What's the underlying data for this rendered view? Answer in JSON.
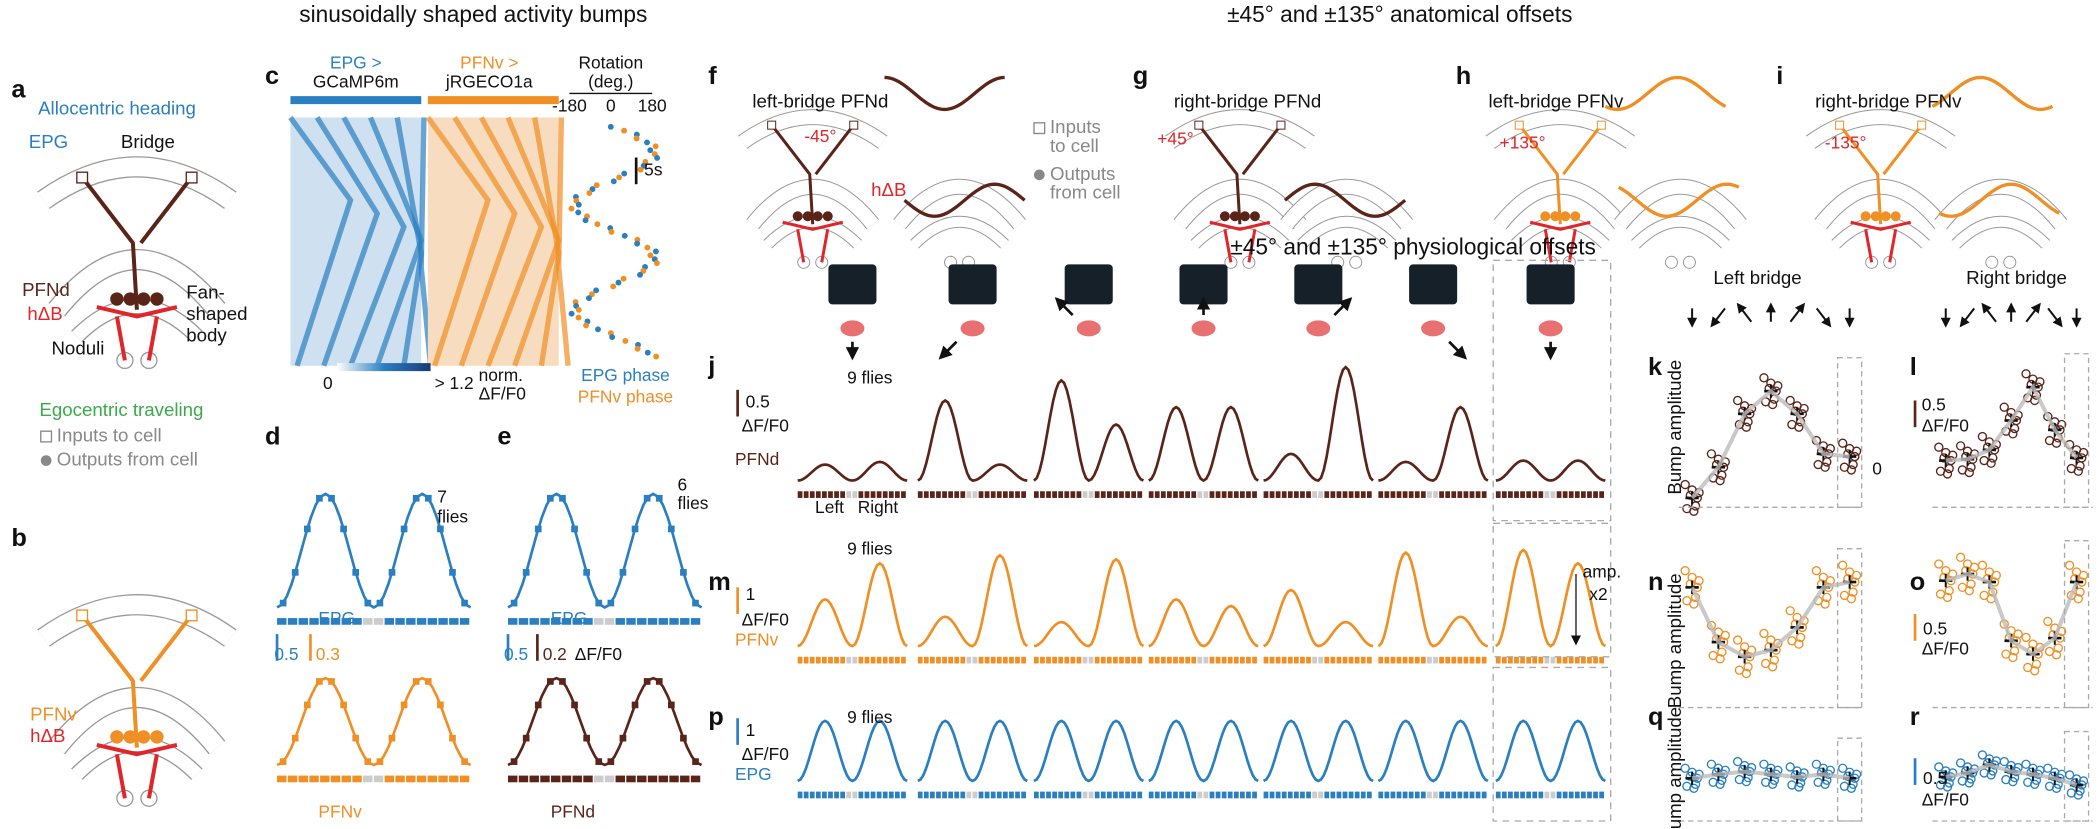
{
  "headers": {
    "bumps": "sinusoidally shaped activity bumps",
    "anatomical": "±45° and ±135° anatomical offsets",
    "physiological": "±45° and ±135° physiological offsets"
  },
  "a": {
    "label": "a",
    "heading": "Allocentric heading",
    "epg": "EPG",
    "bridge": "Bridge",
    "pfnd": "PFNd",
    "hdb": "hΔB",
    "fsb": [
      "Fan-",
      "shaped",
      "body"
    ],
    "noduli": "Noduli",
    "traveling": "Egocentric traveling",
    "inputs": "Inputs to cell",
    "outputs": "Outputs from cell"
  },
  "b": {
    "label": "b",
    "pfnv": "PFNv",
    "hdb": "hΔB"
  },
  "c": {
    "label": "c",
    "epg": [
      "EPG >",
      "GCaMP6m"
    ],
    "pfnv": [
      "PFNv >",
      "jRGECO1a"
    ],
    "rotation": [
      "Rotation",
      "(deg.)"
    ],
    "ticks": [
      "-180",
      "0",
      "180"
    ],
    "time": "5s",
    "cbar_min": "0",
    "cbar_max": "> 1.2",
    "cbar_unit": [
      "norm.",
      "ΔF/F0"
    ],
    "legend": [
      "EPG phase",
      "PFNv phase"
    ]
  },
  "d": {
    "label": "d",
    "n": [
      "7",
      "flies"
    ],
    "top": "EPG",
    "scale": [
      "0.5",
      "0.3"
    ],
    "bottom": "PFNv"
  },
  "e": {
    "label": "e",
    "n": [
      "6",
      "flies"
    ],
    "top": "EPG",
    "scale": [
      "0.5",
      "0.2",
      "ΔF/F0"
    ],
    "bottom": "PFNd"
  },
  "f": {
    "label": "f",
    "title": "left-bridge PFNd",
    "offset": "-45°",
    "hdb": "hΔB",
    "legend": [
      "Inputs",
      "to cell",
      "Outputs",
      "from cell"
    ]
  },
  "g": {
    "label": "g",
    "title": "right-bridge PFNd",
    "offset": "+45°"
  },
  "h": {
    "label": "h",
    "title": "left-bridge PFNv",
    "offset": "+135°"
  },
  "i": {
    "label": "i",
    "title": "right-bridge PFNv",
    "offset": "-135°"
  },
  "j": {
    "label": "j",
    "scale": "0.5",
    "unit": "ΔF/F0",
    "n": "9 flies",
    "cell": "PFNd",
    "left": "Left",
    "right": "Right"
  },
  "k": {
    "label": "k",
    "title": "Left bridge",
    "ylabel": "Bump amplitude"
  },
  "l": {
    "label": "l",
    "title": "Right bridge",
    "scale": "0.5",
    "unit": "ΔF/F0",
    "zero": "0"
  },
  "m": {
    "label": "m",
    "scale": "1",
    "unit": "ΔF/F0",
    "n": "9 flies",
    "cell": "PFNv",
    "amp": [
      "amp.",
      "x2"
    ]
  },
  "n": {
    "label": "n",
    "ylabel": "Bump amplitude"
  },
  "o": {
    "label": "o",
    "scale": "0.5",
    "unit": "ΔF/F0"
  },
  "p": {
    "label": "p",
    "scale": "1",
    "unit": "ΔF/F0",
    "n": "9 flies",
    "cell": "EPG"
  },
  "q": {
    "label": "q",
    "ylabel": "Bump amplitude"
  },
  "r": {
    "label": "r",
    "scale": "0.5",
    "unit": "ΔF/F0"
  }
}
